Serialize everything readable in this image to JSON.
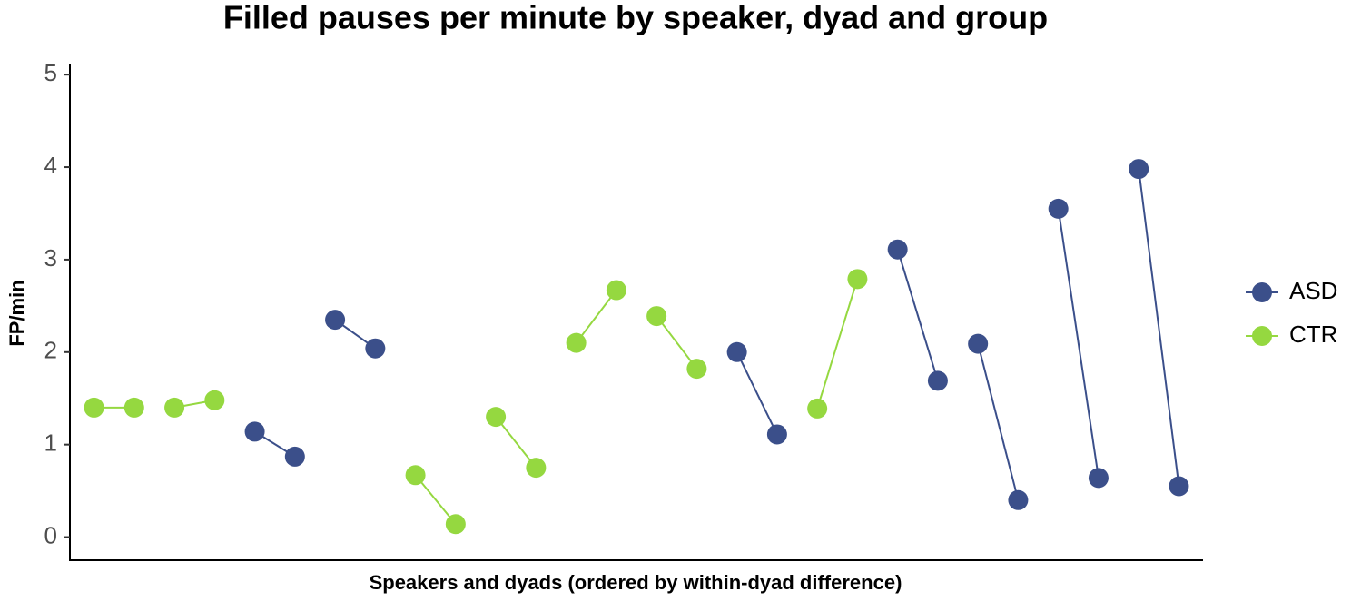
{
  "chart_data": {
    "type": "dyad",
    "title": "Filled pauses per minute by speaker, dyad and group",
    "x_label": "Speakers and dyads (ordered by within-dyad difference)",
    "y_label": "FP/min",
    "ylim": [
      -0.25,
      5.1
    ],
    "yticks": [
      0,
      1,
      2,
      3,
      4,
      5
    ],
    "categories": [
      null,
      null,
      null,
      null,
      null,
      null,
      null,
      null,
      null,
      null,
      null,
      null,
      null,
      null,
      null,
      null,
      null,
      null,
      null,
      null,
      null,
      null,
      null,
      null,
      null,
      null,
      null,
      null
    ],
    "legend": "right",
    "series": [
      {
        "name": "ASD",
        "color": "#3b4f8a",
        "values": [
          null,
          null,
          null,
          null,
          1.14,
          0.87,
          2.35,
          2.04,
          null,
          null,
          null,
          null,
          null,
          null,
          null,
          null,
          2.0,
          1.11,
          null,
          null,
          3.11,
          1.69,
          2.09,
          0.4,
          3.55,
          0.64,
          3.98,
          0.55
        ]
      },
      {
        "name": "CTR",
        "color": "#95d840",
        "values": [
          1.4,
          1.4,
          1.4,
          1.48,
          null,
          null,
          null,
          null,
          0.67,
          0.14,
          1.3,
          0.75,
          2.1,
          2.67,
          2.39,
          1.82,
          null,
          null,
          1.39,
          2.79,
          null,
          null,
          null,
          null,
          null,
          null,
          null,
          null
        ]
      }
    ]
  }
}
